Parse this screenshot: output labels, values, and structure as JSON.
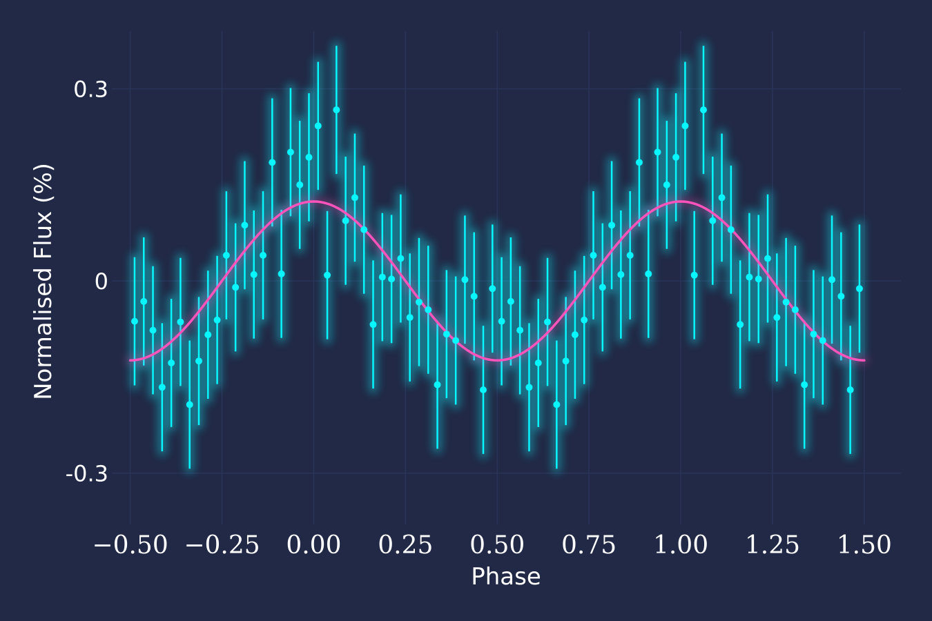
{
  "chart_data": {
    "type": "scatter",
    "title": "",
    "xlabel": "Phase",
    "ylabel": "Normalised Flux (%)",
    "xlim": [
      -0.55,
      1.6
    ],
    "ylim": [
      -0.38,
      0.39
    ],
    "grid": true,
    "x_ticks": [
      -0.5,
      -0.25,
      0.0,
      0.25,
      0.5,
      0.75,
      1.0,
      1.25,
      1.5
    ],
    "x_tick_labels": [
      "−0.50",
      "−0.25",
      "0.00",
      "0.25",
      "0.50",
      "0.75",
      "1.00",
      "1.25",
      "1.50"
    ],
    "y_ticks": [
      -0.3,
      0,
      0.3
    ],
    "y_tick_labels": [
      "-0.3",
      "0",
      "0.3"
    ],
    "series": [
      {
        "kind": "errorbar",
        "color": "#08F7FE",
        "x": [
          -0.488,
          -0.463,
          -0.438,
          -0.413,
          -0.388,
          -0.363,
          -0.338,
          -0.313,
          -0.288,
          -0.263,
          -0.238,
          -0.213,
          -0.188,
          -0.163,
          -0.138,
          -0.113,
          -0.088,
          -0.063,
          -0.038,
          -0.013,
          0.012,
          0.037,
          0.062,
          0.087,
          0.112,
          0.137,
          0.162,
          0.187,
          0.212,
          0.237,
          0.262,
          0.287,
          0.312,
          0.337,
          0.362,
          0.387,
          0.412,
          0.437,
          0.462,
          0.487,
          0.512,
          0.537,
          0.562,
          0.587,
          0.612,
          0.637,
          0.662,
          0.687,
          0.712,
          0.737,
          0.762,
          0.787,
          0.812,
          0.837,
          0.862,
          0.887,
          0.912,
          0.937,
          0.962,
          0.987,
          1.012,
          1.037,
          1.062,
          1.087,
          1.112,
          1.137,
          1.162,
          1.187,
          1.212,
          1.237,
          1.262,
          1.287,
          1.312,
          1.337,
          1.362,
          1.387,
          1.412,
          1.437,
          1.462,
          1.487
        ],
        "y": [
          -0.063,
          -0.032,
          -0.077,
          -0.166,
          -0.128,
          -0.064,
          -0.193,
          -0.125,
          -0.084,
          -0.061,
          0.04,
          -0.01,
          0.087,
          0.01,
          0.04,
          0.185,
          0.011,
          0.201,
          0.15,
          0.193,
          0.242,
          0.009,
          0.267,
          0.094,
          0.13,
          0.08,
          -0.068,
          0.006,
          0.003,
          0.035,
          -0.057,
          -0.033,
          -0.045,
          -0.162,
          -0.083,
          -0.093,
          0.002,
          -0.024,
          -0.17,
          -0.012,
          -0.063,
          -0.032,
          -0.077,
          -0.166,
          -0.128,
          -0.064,
          -0.193,
          -0.125,
          -0.084,
          -0.061,
          0.04,
          -0.01,
          0.087,
          0.01,
          0.04,
          0.185,
          0.011,
          0.201,
          0.15,
          0.193,
          0.242,
          0.009,
          0.267,
          0.094,
          0.13,
          0.08,
          -0.068,
          0.006,
          0.003,
          0.035,
          -0.057,
          -0.033,
          -0.045,
          -0.162,
          -0.083,
          -0.093,
          0.002,
          -0.024,
          -0.17,
          -0.012
        ],
        "yerr": 0.1
      },
      {
        "kind": "line",
        "color": "#FE53BB",
        "model": "sinusoid",
        "amplitude": 0.124,
        "phase_of_maximum": 0.0,
        "x_range": [
          -0.5,
          1.5
        ]
      }
    ]
  }
}
